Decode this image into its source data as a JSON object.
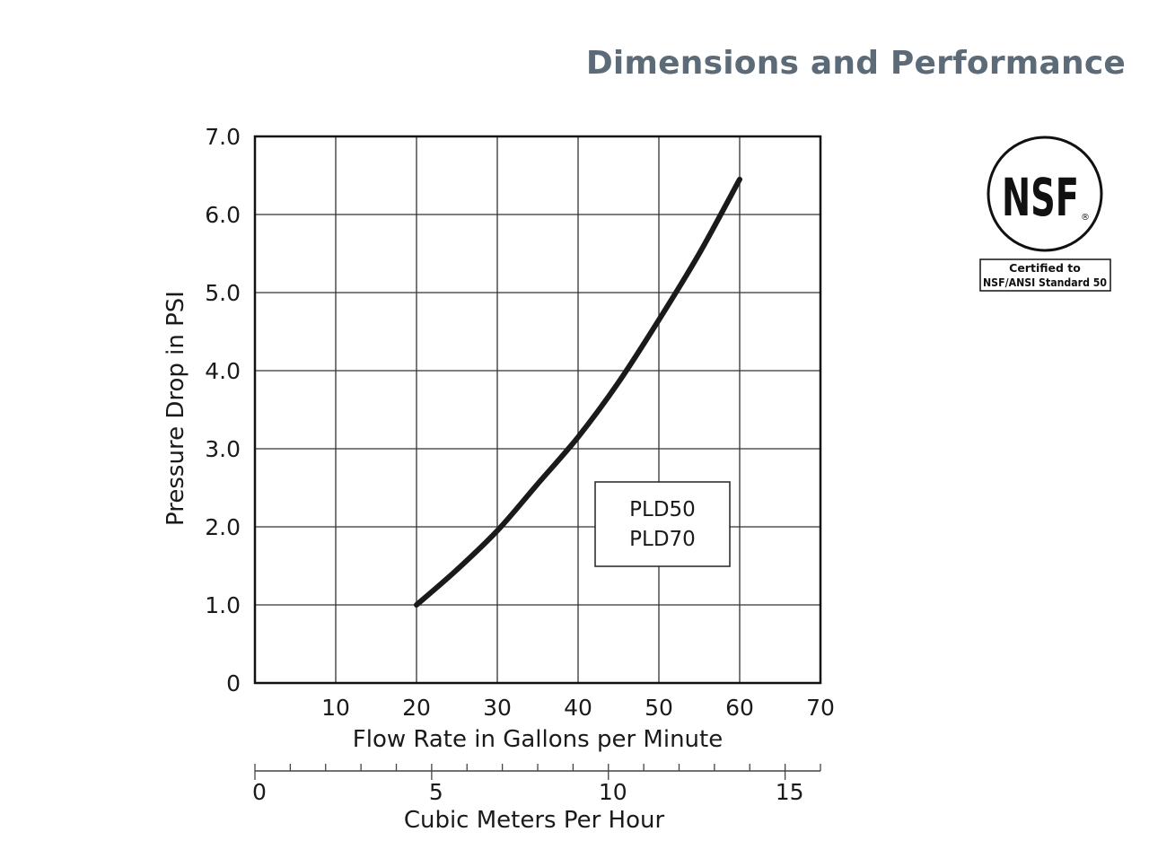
{
  "header": {
    "title": "Dimensions and Performance"
  },
  "badge": {
    "logo_text": "NSF",
    "registered_mark": "®",
    "line1": "Certified to",
    "line2": "NSF/ANSI Standard 50"
  },
  "chart_data": {
    "type": "line",
    "title": "",
    "xlabel": "Flow Rate in Gallons per Minute",
    "ylabel": "Pressure Drop in PSI",
    "xlim": [
      0,
      70
    ],
    "ylim": [
      0,
      7
    ],
    "x_ticks": [
      10,
      20,
      30,
      40,
      50,
      60,
      70
    ],
    "x_tick_labels": [
      "10",
      "20",
      "30",
      "40",
      "50",
      "60",
      "70"
    ],
    "y_ticks": [
      0,
      1,
      2,
      3,
      4,
      5,
      6,
      7
    ],
    "y_tick_labels": [
      "0",
      "1.0",
      "2.0",
      "3.0",
      "4.0",
      "5.0",
      "6.0",
      "7.0"
    ],
    "grid": true,
    "series": [
      {
        "name": "PLD50 / PLD70",
        "x": [
          20,
          25,
          30,
          35,
          40,
          45,
          50,
          55,
          60
        ],
        "y": [
          1.0,
          1.45,
          1.95,
          2.55,
          3.15,
          3.85,
          4.65,
          5.5,
          6.45
        ]
      }
    ],
    "legend": {
      "position": "bottom-right",
      "entries": [
        "PLD50",
        "PLD70"
      ]
    },
    "secondary_x_axis": {
      "label": "Cubic Meters Per Hour",
      "range": [
        0,
        16
      ],
      "major_ticks": [
        0,
        5,
        10,
        15
      ],
      "major_tick_labels": [
        "0",
        "5",
        "10",
        "15"
      ],
      "minor_step": 1
    }
  }
}
